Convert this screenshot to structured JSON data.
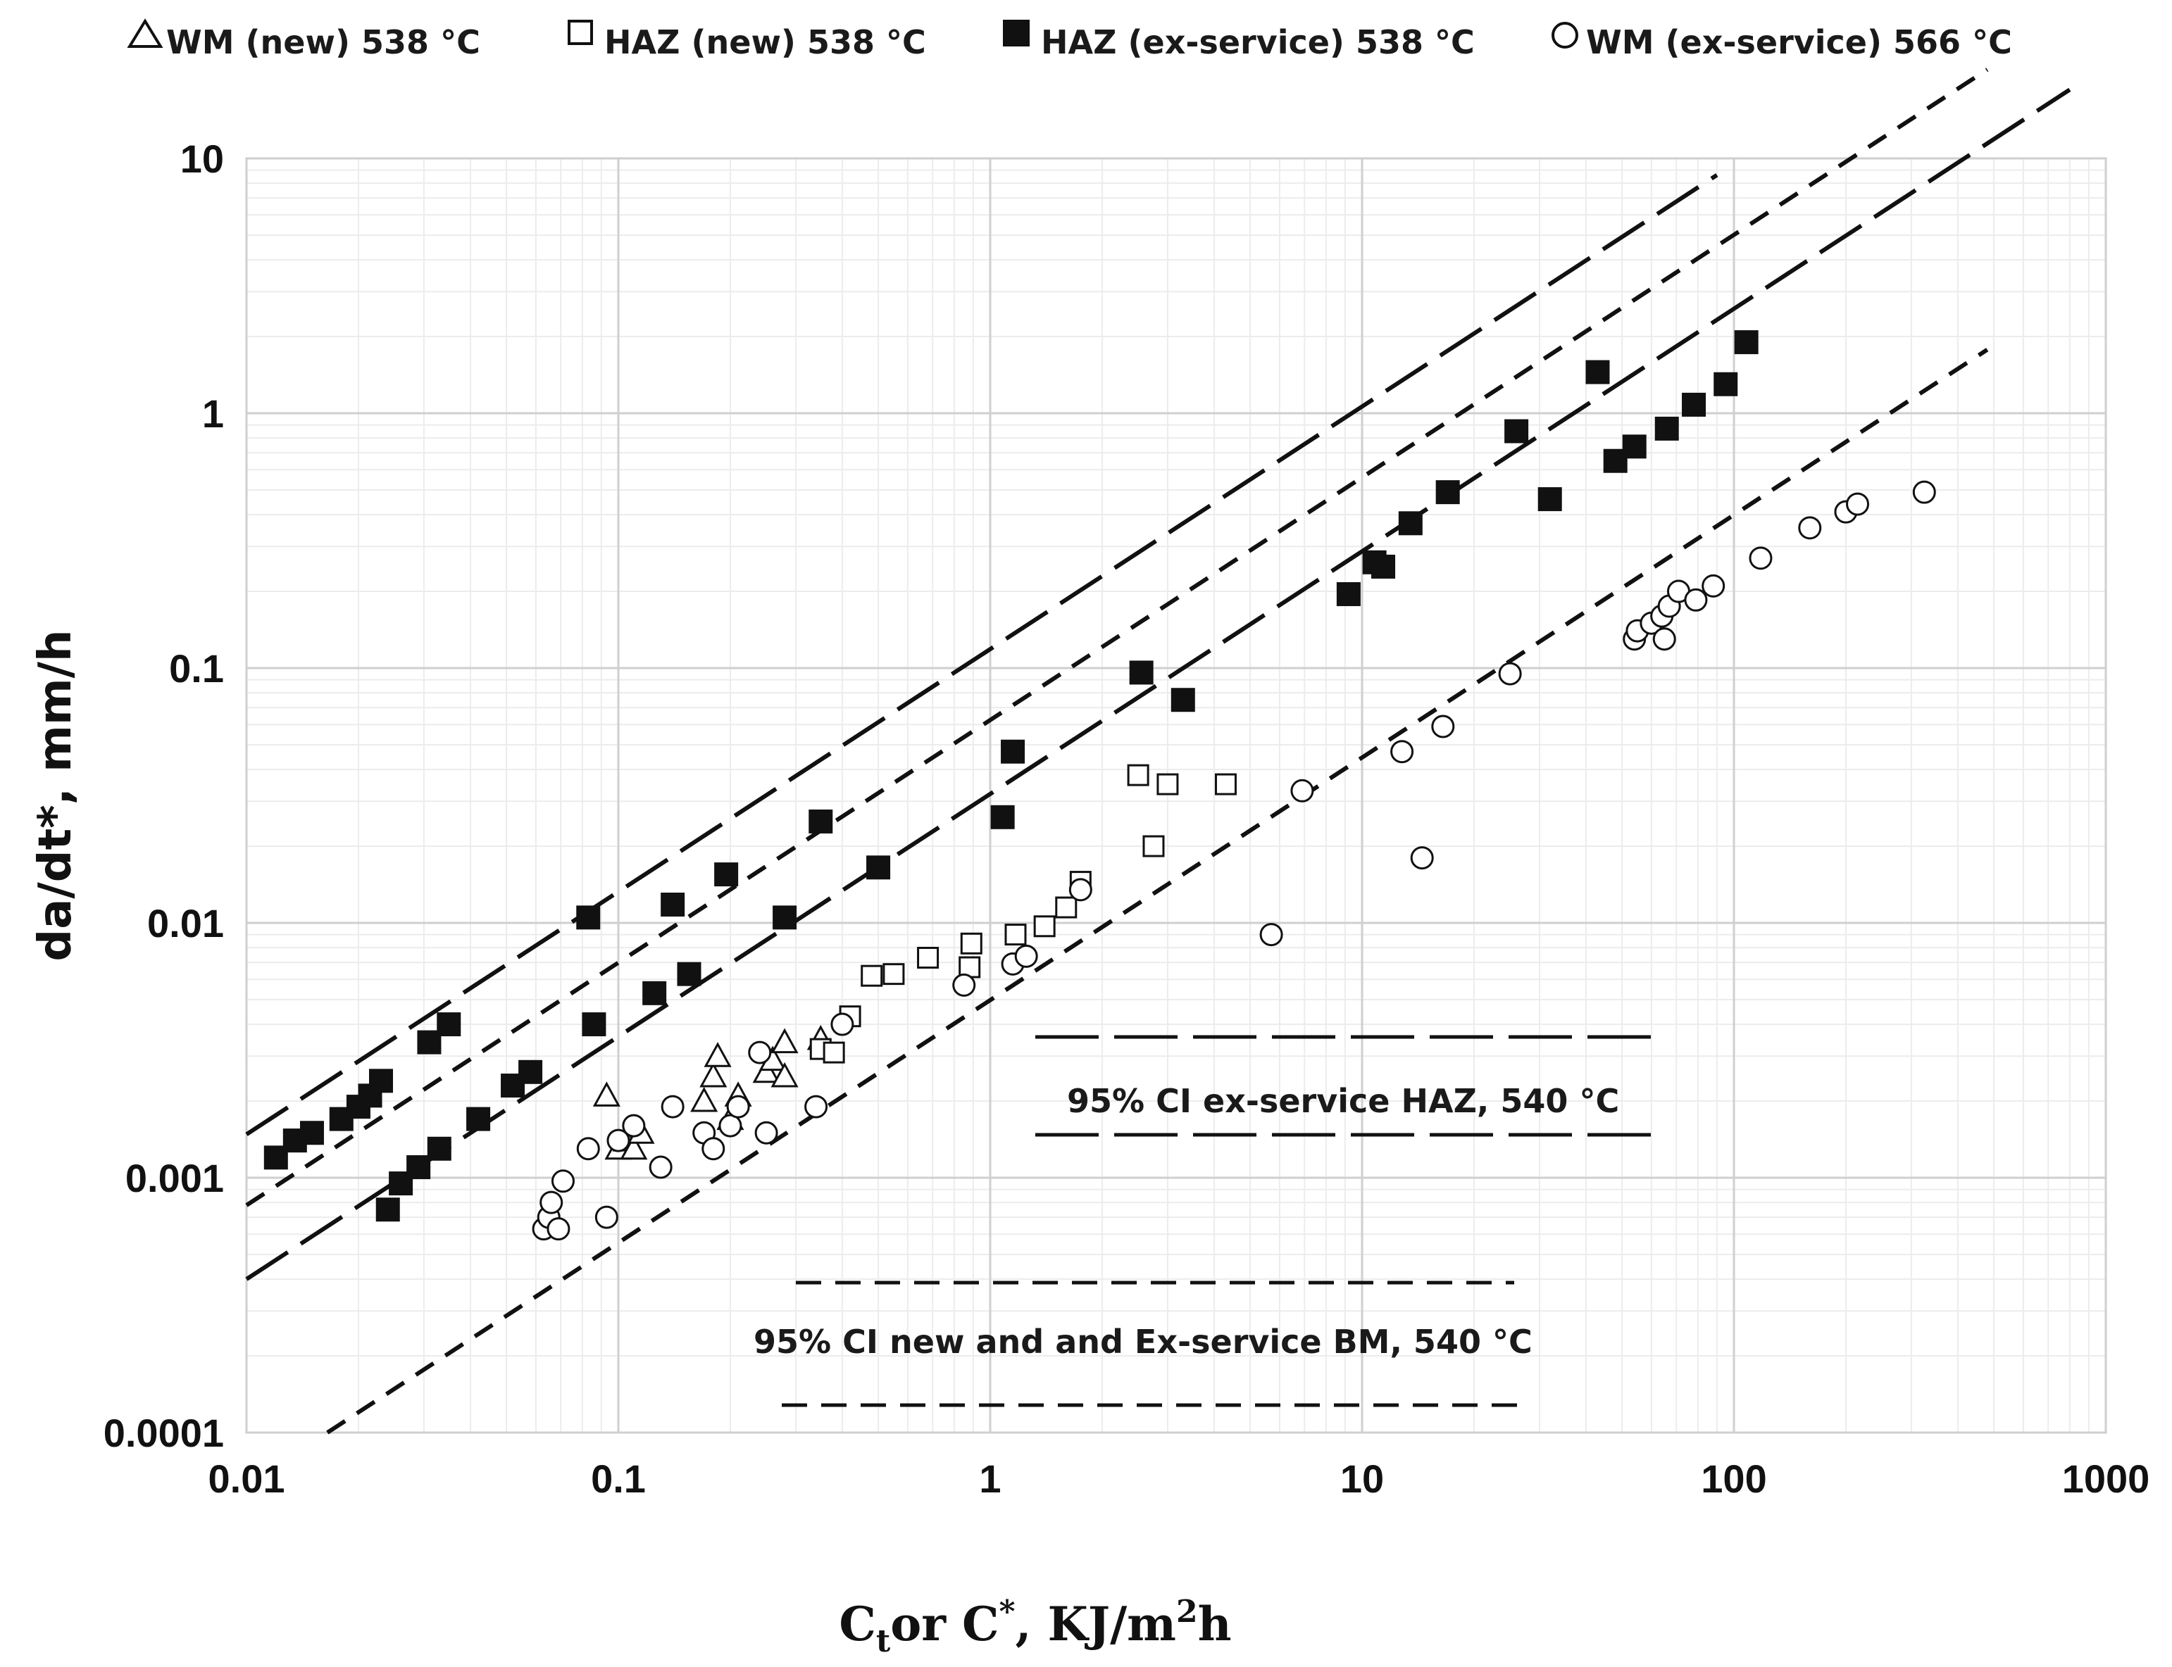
{
  "chart_data": {
    "type": "scatter",
    "title": "",
    "xlabel": "C_t or C*, KJ/m^2h",
    "xlabel_parts": {
      "a": "C",
      "a_sub": "t",
      "b": "or C",
      "b_sup": "*",
      "c": ", KJ/m",
      "c_sup": "2",
      "d": "h"
    },
    "ylabel": "da/dt*, mm/h",
    "x_scale": "log",
    "y_scale": "log",
    "xlim": [
      0.01,
      1000
    ],
    "ylim": [
      0.0001,
      10
    ],
    "x_ticks": [
      0.01,
      0.1,
      1,
      10,
      100,
      1000
    ],
    "x_tick_labels": [
      "0.01",
      "0.1",
      "1",
      "10",
      "100",
      "1000"
    ],
    "y_ticks": [
      0.0001,
      0.001,
      0.01,
      0.1,
      1,
      10
    ],
    "y_tick_labels": [
      "0.0001",
      "0.001",
      "0.01",
      "0.1",
      "1",
      "10"
    ],
    "grid": true,
    "legend_position": "top",
    "series": [
      {
        "name": "WM (new) 538 °C",
        "marker": "triangle-open",
        "points": [
          [
            0.093,
            0.0021
          ],
          [
            0.1,
            0.0013
          ],
          [
            0.105,
            0.0014
          ],
          [
            0.11,
            0.0013
          ],
          [
            0.115,
            0.0015
          ],
          [
            0.17,
            0.002
          ],
          [
            0.18,
            0.0025
          ],
          [
            0.185,
            0.003
          ],
          [
            0.2,
            0.0017
          ],
          [
            0.21,
            0.0021
          ],
          [
            0.25,
            0.0026
          ],
          [
            0.26,
            0.0029
          ],
          [
            0.28,
            0.0025
          ],
          [
            0.28,
            0.0034
          ],
          [
            0.35,
            0.0035
          ]
        ]
      },
      {
        "name": "HAZ (new) 538 °C",
        "marker": "square-open",
        "points": [
          [
            0.35,
            0.0032
          ],
          [
            0.38,
            0.0031
          ],
          [
            0.42,
            0.0043
          ],
          [
            0.48,
            0.0062
          ],
          [
            0.55,
            0.0063
          ],
          [
            0.68,
            0.0073
          ],
          [
            0.88,
            0.0067
          ],
          [
            0.89,
            0.0083
          ],
          [
            1.17,
            0.009
          ],
          [
            1.4,
            0.0097
          ],
          [
            1.6,
            0.0115
          ],
          [
            1.75,
            0.0145
          ],
          [
            2.5,
            0.038
          ],
          [
            2.75,
            0.02
          ],
          [
            3.0,
            0.035
          ],
          [
            4.3,
            0.035
          ]
        ]
      },
      {
        "name": "HAZ (ex-service) 538 °C",
        "marker": "square-filled",
        "points": [
          [
            0.012,
            0.0012
          ],
          [
            0.0135,
            0.0014
          ],
          [
            0.015,
            0.0015
          ],
          [
            0.018,
            0.0017
          ],
          [
            0.02,
            0.0019
          ],
          [
            0.0215,
            0.0021
          ],
          [
            0.023,
            0.0024
          ],
          [
            0.024,
            0.00075
          ],
          [
            0.026,
            0.00095
          ],
          [
            0.029,
            0.0011
          ],
          [
            0.031,
            0.0034
          ],
          [
            0.033,
            0.0013
          ],
          [
            0.035,
            0.004
          ],
          [
            0.042,
            0.0017
          ],
          [
            0.052,
            0.0023
          ],
          [
            0.058,
            0.0026
          ],
          [
            0.083,
            0.0105
          ],
          [
            0.086,
            0.004
          ],
          [
            0.125,
            0.0053
          ],
          [
            0.14,
            0.0118
          ],
          [
            0.155,
            0.0063
          ],
          [
            0.195,
            0.0155
          ],
          [
            0.28,
            0.0105
          ],
          [
            0.35,
            0.025
          ],
          [
            0.5,
            0.0165
          ],
          [
            1.08,
            0.026
          ],
          [
            1.15,
            0.047
          ],
          [
            2.55,
            0.096
          ],
          [
            3.3,
            0.075
          ],
          [
            9.2,
            0.195
          ],
          [
            10.8,
            0.26
          ],
          [
            11.4,
            0.25
          ],
          [
            13.5,
            0.37
          ],
          [
            17,
            0.49
          ],
          [
            26,
            0.85
          ],
          [
            32,
            0.46
          ],
          [
            43,
            1.45
          ],
          [
            48,
            0.65
          ],
          [
            54,
            0.74
          ],
          [
            66,
            0.87
          ],
          [
            78,
            1.08
          ],
          [
            95,
            1.3
          ],
          [
            108,
            1.9
          ]
        ]
      },
      {
        "name": "WM (ex-service) 566 °C",
        "marker": "circle-open",
        "points": [
          [
            0.063,
            0.00063
          ],
          [
            0.065,
            0.0007
          ],
          [
            0.066,
            0.0008
          ],
          [
            0.069,
            0.00063
          ],
          [
            0.071,
            0.00097
          ],
          [
            0.083,
            0.0013
          ],
          [
            0.093,
            0.0007
          ],
          [
            0.1,
            0.0014
          ],
          [
            0.11,
            0.0016
          ],
          [
            0.13,
            0.0011
          ],
          [
            0.14,
            0.0019
          ],
          [
            0.17,
            0.0015
          ],
          [
            0.18,
            0.0013
          ],
          [
            0.2,
            0.0016
          ],
          [
            0.21,
            0.0019
          ],
          [
            0.24,
            0.0031
          ],
          [
            0.25,
            0.0015
          ],
          [
            0.34,
            0.0019
          ],
          [
            0.4,
            0.004
          ],
          [
            0.85,
            0.0057
          ],
          [
            1.15,
            0.0069
          ],
          [
            1.25,
            0.0074
          ],
          [
            1.75,
            0.0135
          ],
          [
            5.7,
            0.009
          ],
          [
            6.9,
            0.033
          ],
          [
            12.8,
            0.047
          ],
          [
            14.5,
            0.018
          ],
          [
            16.5,
            0.059
          ],
          [
            25,
            0.095
          ],
          [
            54,
            0.13
          ],
          [
            55,
            0.14
          ],
          [
            60,
            0.15
          ],
          [
            64,
            0.16
          ],
          [
            65,
            0.13
          ],
          [
            67,
            0.175
          ],
          [
            71,
            0.2
          ],
          [
            79,
            0.185
          ],
          [
            88,
            0.21
          ],
          [
            118,
            0.27
          ],
          [
            160,
            0.355
          ],
          [
            200,
            0.41
          ],
          [
            215,
            0.44
          ],
          [
            325,
            0.49
          ]
        ]
      }
    ],
    "bounds": [
      {
        "name": "95% CI ex-service HAZ, 540 °C",
        "style": "long-dash",
        "x_range": [
          0.01,
          90
        ],
        "y_start": 0.00148,
        "slope": 0.952
      },
      {
        "name": "95% CI ex-service HAZ, 540 °C",
        "style": "long-dash",
        "x_range": [
          0.01,
          800
        ],
        "y_start": 0.0004,
        "slope": 0.952
      },
      {
        "name": "95% CI new and and Ex-service BM, 540 °C",
        "style": "short-dash",
        "x_range": [
          0.01,
          480
        ],
        "y_start": 0.00078,
        "slope": 0.952
      },
      {
        "name": "95% CI new and and Ex-service BM, 540 °C",
        "style": "short-dash",
        "x_range": [
          0.0165,
          480
        ],
        "y_start": 0.0001,
        "slope": 0.952
      }
    ],
    "annotations": {
      "haz_label": "95% CI ex-service HAZ, 540 °C",
      "bm_label": "95% CI new and and Ex-service BM, 540 °C"
    }
  }
}
